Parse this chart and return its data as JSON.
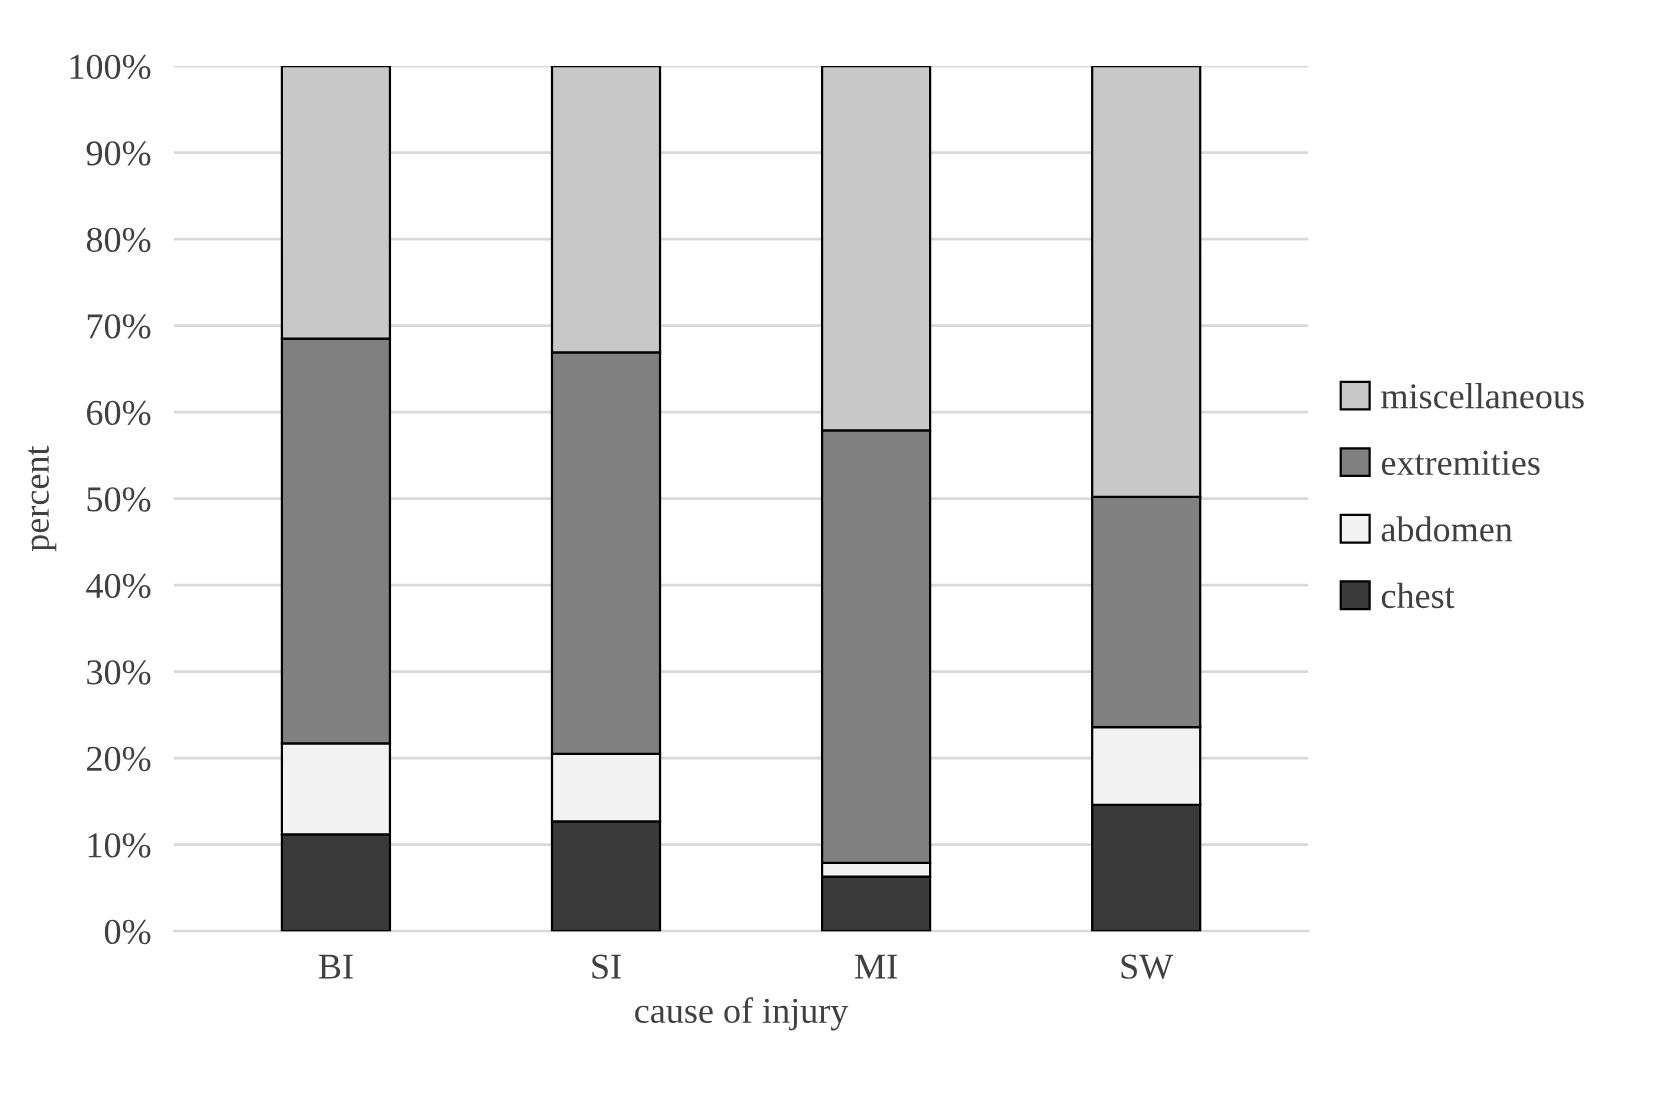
{
  "chart_data": {
    "type": "bar",
    "stacked": true,
    "xlabel": "cause of injury",
    "ylabel": "percent",
    "categories": [
      "BI",
      "SI",
      "MI",
      "SW"
    ],
    "series": [
      {
        "name": "chest",
        "color": "#3a3a3a",
        "values": [
          11.2,
          12.7,
          6.3,
          14.6
        ]
      },
      {
        "name": "abdomen",
        "color": "#f2f2f2",
        "values": [
          10.5,
          7.8,
          1.6,
          9.0
        ]
      },
      {
        "name": "extremities",
        "color": "#808080",
        "values": [
          46.8,
          46.4,
          50.0,
          26.6
        ]
      },
      {
        "name": "miscellaneous",
        "color": "#c8c8c8",
        "values": [
          31.5,
          33.1,
          42.1,
          49.8
        ]
      }
    ],
    "ylim": [
      0,
      100
    ],
    "yticks": [
      {
        "value": 0,
        "label": "0%"
      },
      {
        "value": 10,
        "label": "10%"
      },
      {
        "value": 20,
        "label": "20%"
      },
      {
        "value": 30,
        "label": "30%"
      },
      {
        "value": 40,
        "label": "40%"
      },
      {
        "value": 50,
        "label": "50%"
      },
      {
        "value": 60,
        "label": "60%"
      },
      {
        "value": 70,
        "label": "70%"
      },
      {
        "value": 80,
        "label": "80%"
      },
      {
        "value": 90,
        "label": "90%"
      },
      {
        "value": 100,
        "label": "100%"
      }
    ],
    "grid": "y",
    "legend": "right"
  }
}
